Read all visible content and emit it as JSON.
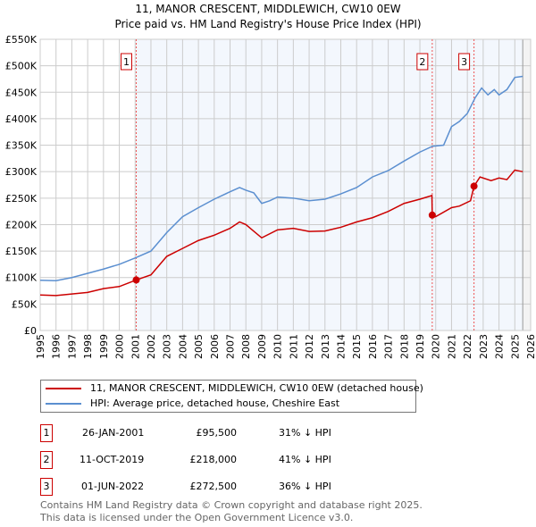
{
  "chart_data": {
    "type": "line",
    "title": "11, MANOR CRESCENT, MIDDLEWICH, CW10 0EW",
    "subtitle": "Price paid vs. HM Land Registry's House Price Index (HPI)",
    "xlim": [
      1995,
      2026
    ],
    "ylim": [
      0,
      550000
    ],
    "x_ticks": [
      "1995",
      "1996",
      "1997",
      "1998",
      "1999",
      "2000",
      "2001",
      "2002",
      "2003",
      "2004",
      "2005",
      "2006",
      "2007",
      "2008",
      "2009",
      "2010",
      "2011",
      "2012",
      "2013",
      "2014",
      "2015",
      "2016",
      "2017",
      "2018",
      "2019",
      "2020",
      "2021",
      "2022",
      "2023",
      "2024",
      "2025",
      "2026"
    ],
    "y_ticks": [
      {
        "v": 0,
        "l": "£0"
      },
      {
        "v": 50000,
        "l": "£50K"
      },
      {
        "v": 100000,
        "l": "£100K"
      },
      {
        "v": 150000,
        "l": "£150K"
      },
      {
        "v": 200000,
        "l": "£200K"
      },
      {
        "v": 250000,
        "l": "£250K"
      },
      {
        "v": 300000,
        "l": "£300K"
      },
      {
        "v": 350000,
        "l": "£350K"
      },
      {
        "v": 400000,
        "l": "£400K"
      },
      {
        "v": 450000,
        "l": "£450K"
      },
      {
        "v": 500000,
        "l": "£500K"
      },
      {
        "v": 550000,
        "l": "£550K"
      }
    ],
    "grid": true,
    "series": [
      {
        "name": "11, MANOR CRESCENT, MIDDLEWICH, CW10 0EW (detached house)",
        "color": "#cc0000",
        "x": [
          1995,
          1996,
          1997,
          1998,
          1999,
          2000,
          2001.07,
          2002,
          2003,
          2004,
          2005,
          2006,
          2007,
          2007.6,
          2008,
          2009,
          2010,
          2011,
          2012,
          2013,
          2014,
          2015,
          2016,
          2017,
          2018,
          2019,
          2019.76,
          2019.78,
          2020,
          2021,
          2021.5,
          2022.2,
          2022.42,
          2022.8,
          2023.5,
          2024,
          2024.5,
          2025,
          2025.5
        ],
        "y": [
          67000,
          66000,
          69000,
          72000,
          79000,
          83000,
          95500,
          105000,
          140000,
          155000,
          170000,
          180000,
          193000,
          205000,
          200000,
          175000,
          190000,
          193000,
          187000,
          188000,
          195000,
          205000,
          213000,
          225000,
          240000,
          248000,
          255000,
          218000,
          215000,
          232000,
          235000,
          245000,
          272500,
          290000,
          283000,
          288000,
          285000,
          303000,
          300000
        ]
      },
      {
        "name": "HPI: Average price, detached house, Cheshire East",
        "color": "#5b8fd0",
        "x": [
          1995,
          1996,
          1997,
          1998,
          1999,
          2000,
          2001,
          2002,
          2003,
          2004,
          2005,
          2006,
          2007,
          2007.6,
          2008,
          2008.5,
          2009,
          2009.5,
          2010,
          2011,
          2012,
          2013,
          2014,
          2015,
          2016,
          2017,
          2018,
          2019,
          2019.8,
          2020.5,
          2021,
          2021.5,
          2022,
          2022.5,
          2022.9,
          2023.3,
          2023.7,
          2024,
          2024.5,
          2025,
          2025.5
        ],
        "y": [
          95000,
          94000,
          100000,
          108000,
          116000,
          125000,
          137000,
          150000,
          185000,
          215000,
          232000,
          248000,
          262000,
          270000,
          265000,
          260000,
          240000,
          245000,
          252000,
          250000,
          245000,
          248000,
          258000,
          270000,
          290000,
          302000,
          320000,
          337000,
          348000,
          350000,
          385000,
          395000,
          410000,
          440000,
          458000,
          445000,
          455000,
          445000,
          455000,
          478000,
          480000
        ]
      }
    ],
    "sales": [
      {
        "n": "1",
        "x": 2001.07,
        "y": 95500
      },
      {
        "n": "2",
        "x": 2019.78,
        "y": 218000
      },
      {
        "n": "3",
        "x": 2022.42,
        "y": 272500
      }
    ],
    "forecast_start": 2025.5
  },
  "legend": {
    "red": "11, MANOR CRESCENT, MIDDLEWICH, CW10 0EW (detached house)",
    "blue": "HPI: Average price, detached house, Cheshire East"
  },
  "table": [
    {
      "n": "1",
      "date": "26-JAN-2001",
      "price": "£95,500",
      "delta": "31% ↓ HPI"
    },
    {
      "n": "2",
      "date": "11-OCT-2019",
      "price": "£218,000",
      "delta": "41% ↓ HPI"
    },
    {
      "n": "3",
      "date": "01-JUN-2022",
      "price": "£272,500",
      "delta": "36% ↓ HPI"
    }
  ],
  "footer": [
    "Contains HM Land Registry data © Crown copyright and database right 2025.",
    "This data is licensed under the Open Government Licence v3.0."
  ]
}
